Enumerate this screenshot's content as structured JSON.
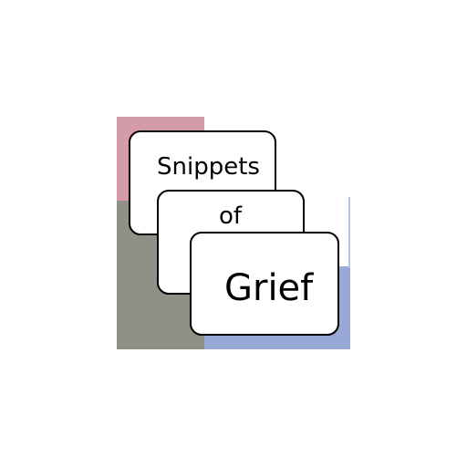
{
  "logo": {
    "line1": "Snippets",
    "line2": "of",
    "line3": "Grief"
  },
  "colors": {
    "pink": "#d49ca8",
    "gray": "#909087",
    "blue": "#99a9d6",
    "card_border": "#000000",
    "card_fill": "#ffffff",
    "background": "#ffffff"
  }
}
